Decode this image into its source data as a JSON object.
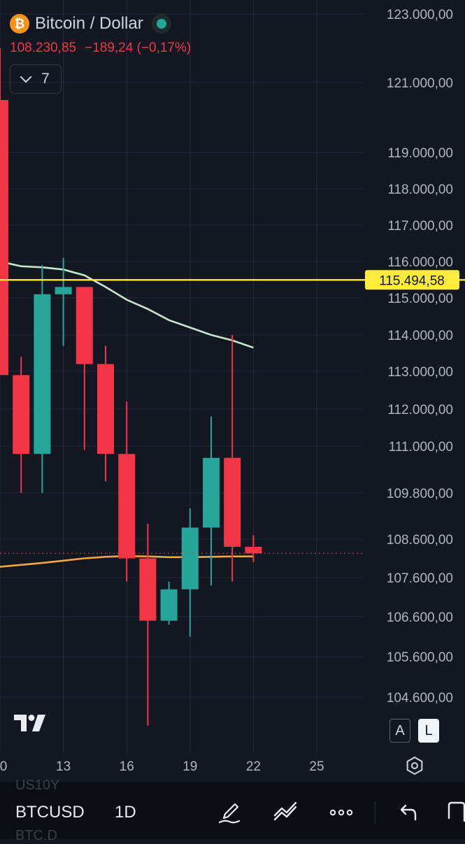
{
  "header": {
    "symbol_title": "Bitcoin / Dollar",
    "btc_glyph": "₿",
    "last_price": "108.230,85",
    "change": "−189,24",
    "change_pct": "(−0,17%)",
    "collapse_count": "7"
  },
  "colors": {
    "background": "#131722",
    "up": "#26a69a",
    "down": "#f23645",
    "line_level": "#ffeb3b",
    "ma_slow": "#c8e6c9",
    "ma_fast": "#f7a442",
    "grid": "#262a35"
  },
  "chart_data": {
    "type": "candlestick",
    "x_ticks": [
      "0",
      "13",
      "16",
      "19",
      "22",
      "25"
    ],
    "y_ticks": [
      "123.000,00",
      "121.000,00",
      "119.000,00",
      "118.000,00",
      "117.000,00",
      "116.000,00",
      "115.000,00",
      "114.000,00",
      "113.000,00",
      "112.000,00",
      "111.000,00",
      "109.800,00",
      "108.600,00",
      "107.600,00",
      "106.600,00",
      "105.600,00",
      "104.600,00"
    ],
    "horizontal_level": {
      "value": 115494.58,
      "label": "115.494,58"
    },
    "last_price_value": 108230.85,
    "candles": [
      {
        "day": 10,
        "open": 120500,
        "high": 122000,
        "low": 112900,
        "close": 112900
      },
      {
        "day": 11,
        "open": 112900,
        "high": 113400,
        "low": 109800,
        "close": 110800
      },
      {
        "day": 12,
        "open": 110800,
        "high": 115900,
        "low": 109800,
        "close": 115100
      },
      {
        "day": 13,
        "open": 115100,
        "high": 116100,
        "low": 113700,
        "close": 115300
      },
      {
        "day": 14,
        "open": 115300,
        "high": 115300,
        "low": 110900,
        "close": 113200
      },
      {
        "day": 15,
        "open": 113200,
        "high": 113700,
        "low": 110100,
        "close": 110800
      },
      {
        "day": 16,
        "open": 110800,
        "high": 112200,
        "low": 107500,
        "close": 108100
      },
      {
        "day": 17,
        "open": 108100,
        "high": 109000,
        "low": 103900,
        "close": 106500
      },
      {
        "day": 18,
        "open": 106500,
        "high": 107500,
        "low": 106400,
        "close": 107300
      },
      {
        "day": 19,
        "open": 107300,
        "high": 109400,
        "low": 106100,
        "close": 108900
      },
      {
        "day": 20,
        "open": 108900,
        "high": 111800,
        "low": 107400,
        "close": 110700
      },
      {
        "day": 21,
        "open": 110700,
        "high": 114000,
        "low": 107500,
        "close": 108400
      },
      {
        "day": 22,
        "open": 108400,
        "high": 108700,
        "low": 108000,
        "close": 108230.85
      }
    ],
    "ma_slow": [
      {
        "day": 10,
        "value": 116000
      },
      {
        "day": 11,
        "value": 115870
      },
      {
        "day": 12,
        "value": 115840
      },
      {
        "day": 13,
        "value": 115780
      },
      {
        "day": 14,
        "value": 115620
      },
      {
        "day": 15,
        "value": 115300
      },
      {
        "day": 16,
        "value": 114950
      },
      {
        "day": 17,
        "value": 114700
      },
      {
        "day": 18,
        "value": 114400
      },
      {
        "day": 19,
        "value": 114200
      },
      {
        "day": 20,
        "value": 114000
      },
      {
        "day": 21,
        "value": 113850
      },
      {
        "day": 22,
        "value": 113650
      }
    ],
    "ma_fast": [
      {
        "day": 10,
        "value": 107880
      },
      {
        "day": 11,
        "value": 107930
      },
      {
        "day": 12,
        "value": 107980
      },
      {
        "day": 13,
        "value": 108040
      },
      {
        "day": 14,
        "value": 108100
      },
      {
        "day": 15,
        "value": 108140
      },
      {
        "day": 16,
        "value": 108160
      },
      {
        "day": 17,
        "value": 108150
      },
      {
        "day": 18,
        "value": 108130
      },
      {
        "day": 19,
        "value": 108130
      },
      {
        "day": 20,
        "value": 108140
      },
      {
        "day": 21,
        "value": 108150
      },
      {
        "day": 22,
        "value": 108150
      }
    ]
  },
  "scale_buttons": {
    "auto": "A",
    "log": "L"
  },
  "toolbar": {
    "symbol": "BTCUSD",
    "interval": "1D",
    "ghost_above": "US10Y",
    "ghost_below": "BTC.D",
    "icons": [
      "pen-icon",
      "trend-line-icon",
      "more-icon",
      "undo-icon",
      "fullscreen-icon"
    ]
  }
}
